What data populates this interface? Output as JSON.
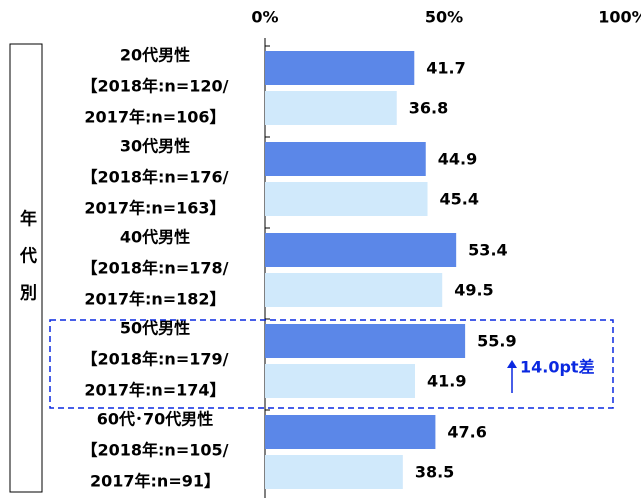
{
  "chart_data": {
    "type": "bar",
    "orientation": "horizontal",
    "group_label": "年代別",
    "categories": [
      [
        "20代男性",
        "【2018年:n=120/",
        "2017年:n=106】"
      ],
      [
        "30代男性",
        "【2018年:n=176/",
        "2017年:n=163】"
      ],
      [
        "40代男性",
        "【2018年:n=178/",
        "2017年:n=182】"
      ],
      [
        "50代男性",
        "【2018年:n=179/",
        "2017年:n=174】"
      ],
      [
        "60代･70代男性",
        "【2018年:n=105/",
        "2017年:n=91】"
      ]
    ],
    "series": [
      {
        "color": "#5b87e8",
        "values": [
          41.7,
          44.9,
          53.4,
          55.9,
          47.6
        ]
      },
      {
        "color": "#d0e9fb",
        "values": [
          36.8,
          45.4,
          49.5,
          41.9,
          38.5
        ]
      }
    ],
    "xlim": [
      0,
      100
    ],
    "xticks": [
      {
        "value": 0,
        "label": "0%"
      },
      {
        "value": 50,
        "label": "50%"
      },
      {
        "value": 100,
        "label": "100%"
      }
    ],
    "annotation": "14.0pt差",
    "annotation_color": "#0a28e0",
    "highlight_category": 3
  }
}
